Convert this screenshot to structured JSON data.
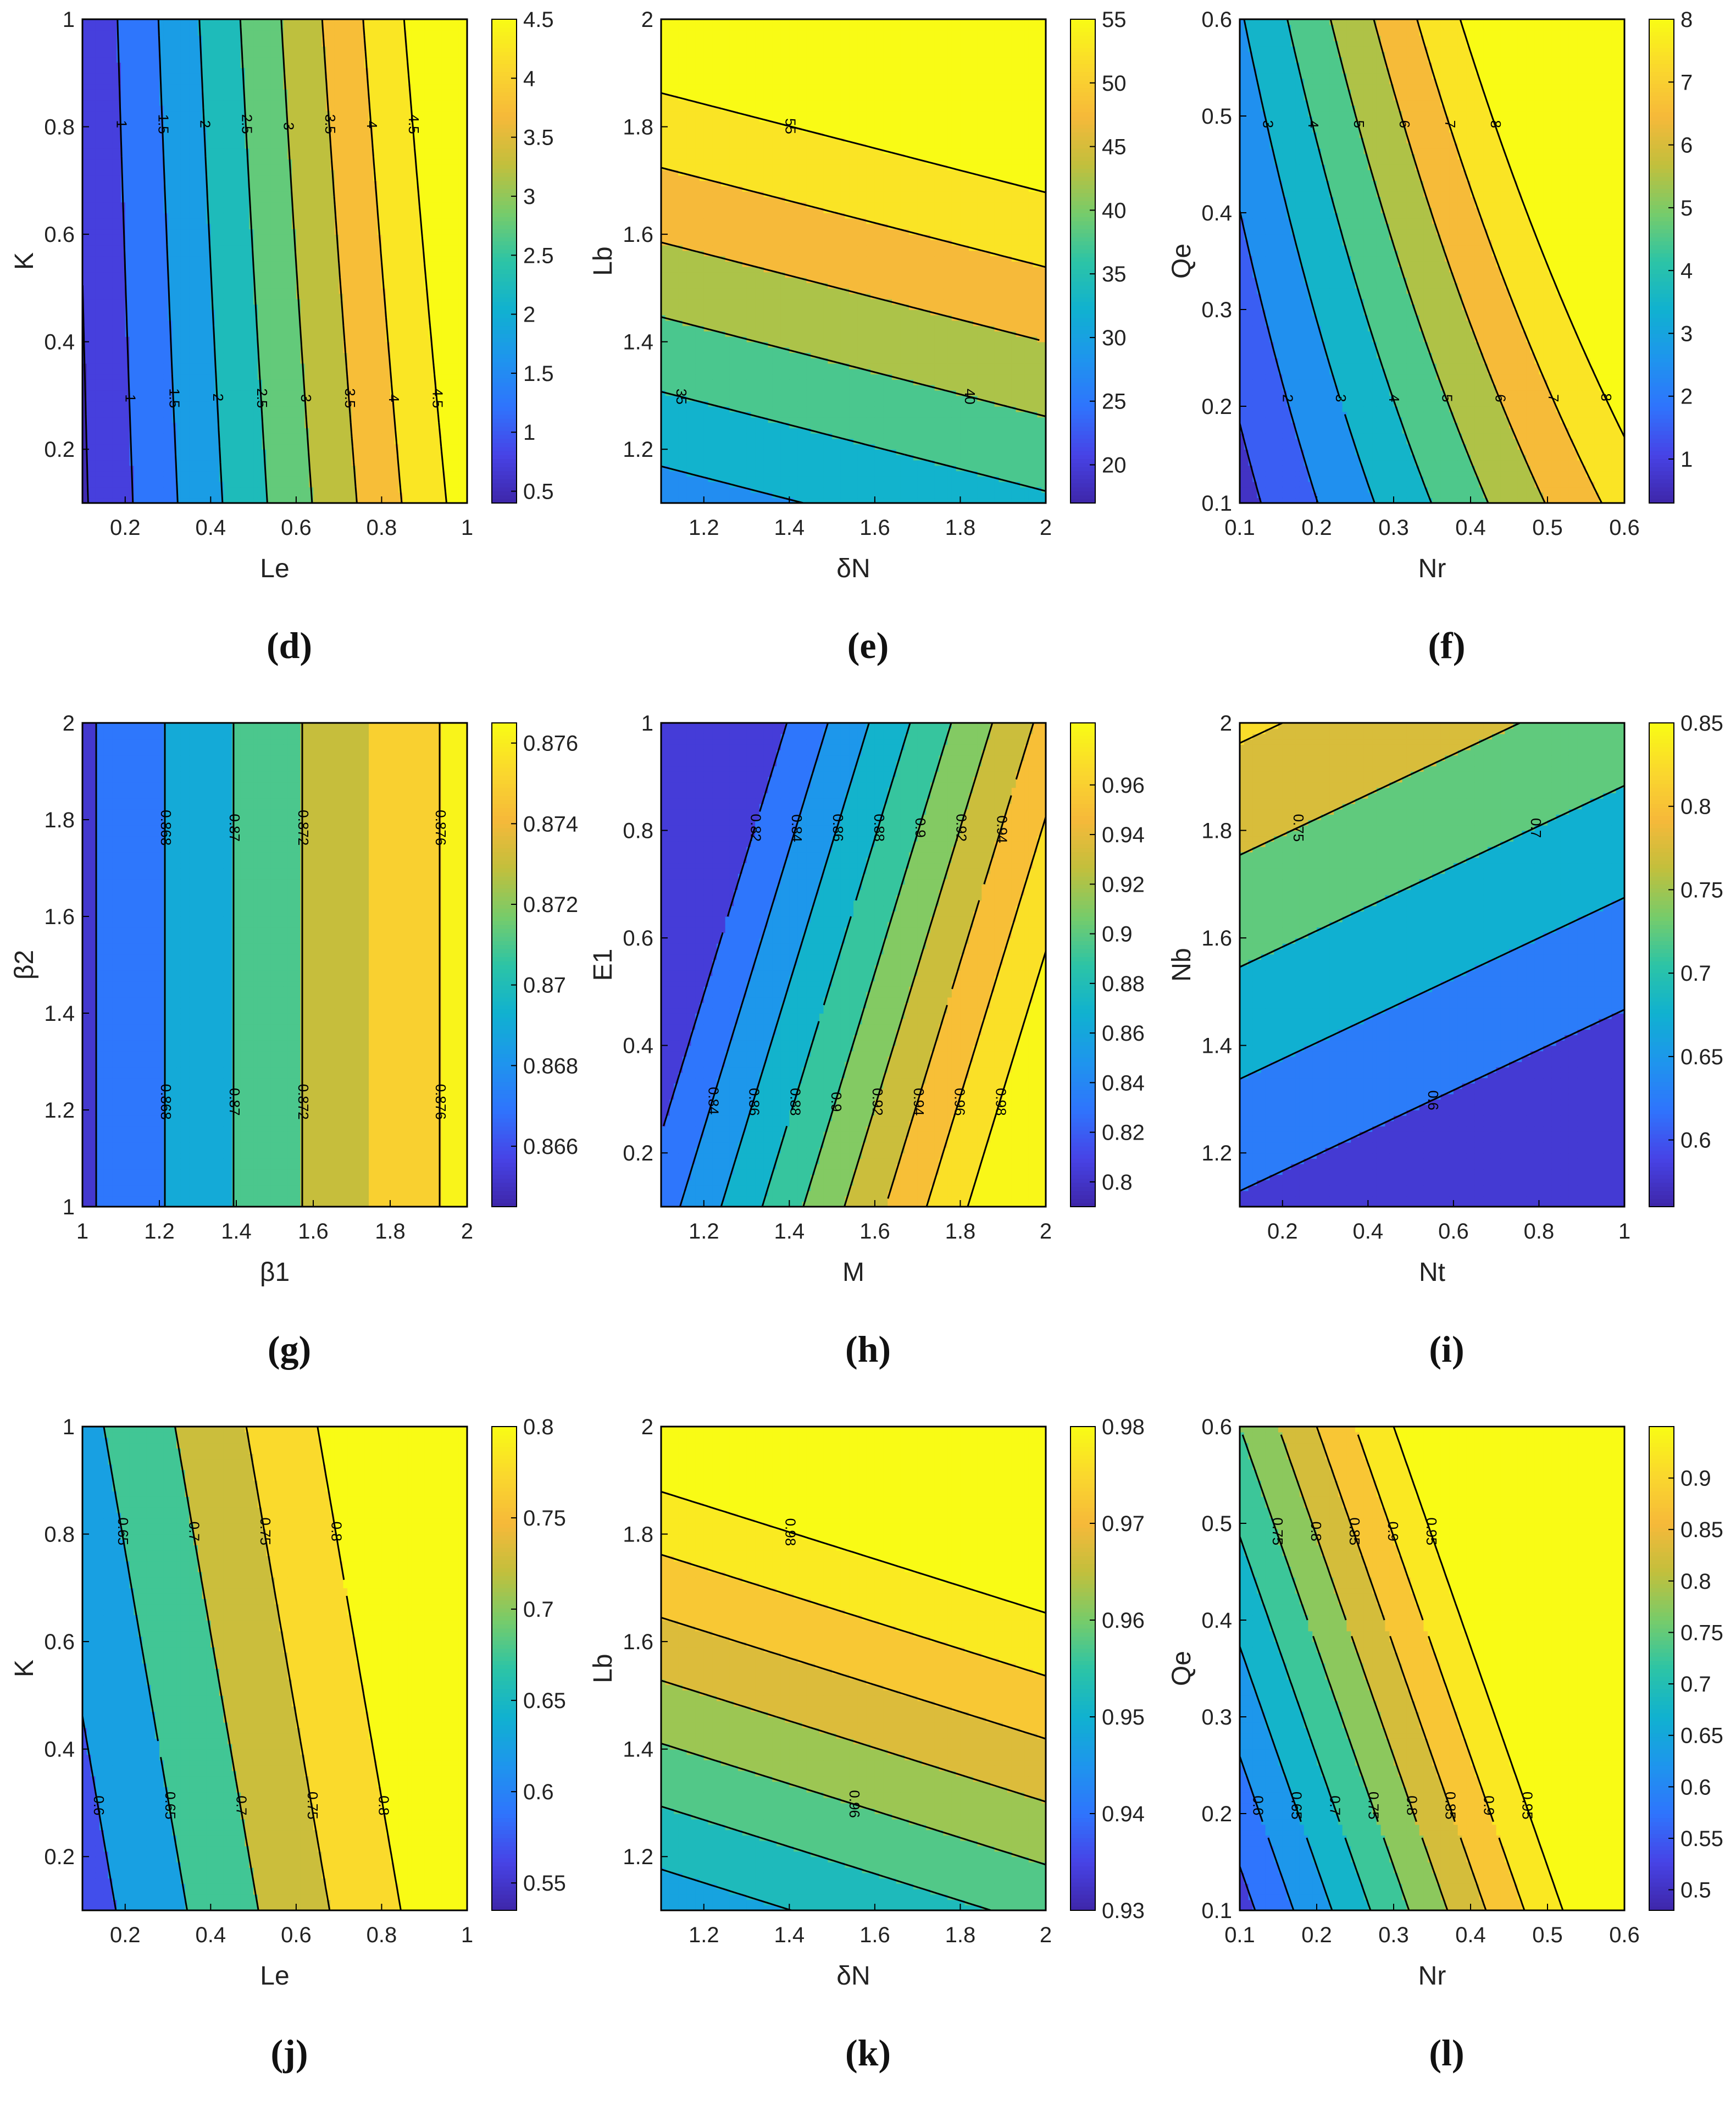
{
  "figure": {
    "background": "#ffffff",
    "outline_color": "#000000"
  },
  "chart_data": [
    {
      "type": "heatmap",
      "caption": "(d)",
      "xlabel": "Le",
      "ylabel": "K",
      "xlim": [
        0.1,
        1
      ],
      "ylim": [
        0.1,
        1
      ],
      "xticks": [
        0.2,
        0.4,
        0.6,
        0.8,
        1
      ],
      "yticks": [
        0.2,
        0.4,
        0.6,
        0.8,
        1
      ],
      "field": {
        "f": "a+b*x+c*y+d*x*y",
        "a": -0.05,
        "b": 4.72,
        "c": 0.1,
        "d": 0.5
      },
      "levels": [
        0.5,
        1,
        1.5,
        2,
        2.5,
        3,
        3.5,
        4,
        4.5
      ],
      "label_levels": [
        "0.5",
        "1",
        "1.5",
        "2",
        "2.5",
        "3",
        "3.5",
        "4",
        "4.5"
      ],
      "clim": [
        0.4,
        4.5
      ],
      "colorbar_ticks": [
        0.5,
        1,
        1.5,
        2,
        2.5,
        3,
        3.5,
        4,
        4.5
      ],
      "colorbar_labels": [
        "0.5",
        "1",
        "1.5",
        "2",
        "2.5",
        "3",
        "3.5",
        "4",
        "4.5"
      ]
    },
    {
      "type": "heatmap",
      "caption": "(e)",
      "xlabel": "δN",
      "ylabel": "Lb",
      "xlim": [
        1.1,
        2
      ],
      "ylim": [
        1.1,
        2
      ],
      "xticks": [
        1.2,
        1.4,
        1.6,
        1.8,
        2
      ],
      "yticks": [
        1.2,
        1.4,
        1.6,
        1.8,
        2
      ],
      "field": {
        "f": "a+b*x+c*y+d*x*y",
        "a": -20.2,
        "b": 7.4,
        "c": 36.0,
        "d": 0
      },
      "levels": [
        20,
        25,
        30,
        35,
        40,
        45,
        50,
        55
      ],
      "label_levels": [
        "20",
        "25",
        "30",
        "35",
        "40",
        "45",
        "50",
        "55"
      ],
      "clim": [
        17,
        55
      ],
      "colorbar_ticks": [
        20,
        25,
        30,
        35,
        40,
        45,
        50,
        55
      ],
      "colorbar_labels": [
        "20",
        "25",
        "30",
        "35",
        "40",
        "45",
        "50",
        "55"
      ]
    },
    {
      "type": "heatmap",
      "caption": "(f)",
      "xlabel": "Nr",
      "ylabel": "Qe",
      "xlim": [
        0.1,
        0.6
      ],
      "ylim": [
        0.1,
        0.6
      ],
      "xticks": [
        0.1,
        0.2,
        0.3,
        0.4,
        0.5,
        0.6
      ],
      "yticks": [
        0.1,
        0.2,
        0.3,
        0.4,
        0.5,
        0.6
      ],
      "field": {
        "f": "a+b*x+c*y+d*x*y",
        "a": -1.1,
        "b": 12.7,
        "c": 3.7,
        "d": 8.5
      },
      "levels": [
        1,
        2,
        3,
        4,
        5,
        6,
        7,
        8
      ],
      "label_levels": [
        "1",
        "2",
        "3",
        "4",
        "5",
        "6",
        "7",
        "8"
      ],
      "clim": [
        0.3,
        8
      ],
      "colorbar_ticks": [
        1,
        2,
        3,
        4,
        5,
        6,
        7,
        8
      ],
      "colorbar_labels": [
        "1",
        "2",
        "3",
        "4",
        "5",
        "6",
        "7",
        "8"
      ]
    },
    {
      "type": "heatmap",
      "caption": "(g)",
      "xlabel": "β1",
      "ylabel": "β2",
      "xlim": [
        1,
        2
      ],
      "ylim": [
        1,
        2
      ],
      "xticks": [
        1,
        1.2,
        1.4,
        1.6,
        1.8,
        2
      ],
      "yticks": [
        1,
        1.2,
        1.4,
        1.6,
        1.8,
        2
      ],
      "field": {
        "f": "a+b*x+c*y+d*x*y",
        "a": 0.8544,
        "b": 0.0112,
        "c": 0,
        "d": 0
      },
      "levels": [
        0.866,
        0.868,
        0.87,
        0.872,
        0.874,
        0.876
      ],
      "label_levels": [
        "0.866",
        "0.868",
        "0.87",
        "0.872",
        "0.874",
        "0.876"
      ],
      "clim": [
        0.8645,
        0.8765
      ],
      "colorbar_ticks": [
        0.866,
        0.868,
        0.87,
        0.872,
        0.874,
        0.876
      ],
      "colorbar_labels": [
        "0.866",
        "0.868",
        "0.87",
        "0.872",
        "0.874",
        "0.876"
      ]
    },
    {
      "type": "heatmap",
      "caption": "(h)",
      "xlabel": "M",
      "ylabel": "E1",
      "xlim": [
        1.1,
        2
      ],
      "ylim": [
        0.1,
        1
      ],
      "xticks": [
        1.2,
        1.4,
        1.6,
        1.8,
        2
      ],
      "yticks": [
        0.2,
        0.4,
        0.6,
        0.8,
        1
      ],
      "field": {
        "f": "a+b*x+c*y+d*x*y",
        "a": 0.61,
        "b": 0.208,
        "c": -0.08,
        "d": 0
      },
      "levels": [
        0.82,
        0.84,
        0.86,
        0.88,
        0.9,
        0.92,
        0.94,
        0.96,
        0.98
      ],
      "label_levels": [
        "0.82",
        "0.84",
        "0.86",
        "0.88",
        "0.9",
        "0.92",
        "0.94",
        "0.96",
        "0.98"
      ],
      "clim": [
        0.79,
        0.985
      ],
      "colorbar_ticks": [
        0.8,
        0.82,
        0.84,
        0.86,
        0.88,
        0.9,
        0.92,
        0.94,
        0.96
      ],
      "colorbar_labels": [
        "0.8",
        "0.82",
        "0.84",
        "0.86",
        "0.88",
        "0.9",
        "0.92",
        "0.94",
        "0.96"
      ]
    },
    {
      "type": "heatmap",
      "caption": "(i)",
      "xlabel": "Nt",
      "ylabel": "Nb",
      "xlim": [
        0.1,
        1
      ],
      "ylim": [
        1.1,
        2
      ],
      "xticks": [
        0.2,
        0.4,
        0.6,
        0.8,
        1
      ],
      "yticks": [
        1.2,
        1.4,
        1.6,
        1.8,
        2
      ],
      "field": {
        "f": "a+b*x+c*y+d*x*y",
        "a": 0.338,
        "b": -0.09,
        "c": 0.24,
        "d": 0
      },
      "levels": [
        0.6,
        0.65,
        0.7,
        0.75,
        0.8
      ],
      "label_levels": [
        "0.6",
        "0.65",
        "0.7",
        "0.75",
        "0.8"
      ],
      "clim": [
        0.56,
        0.85
      ],
      "colorbar_ticks": [
        0.6,
        0.65,
        0.7,
        0.75,
        0.8,
        0.85
      ],
      "colorbar_labels": [
        "0.6",
        "0.65",
        "0.7",
        "0.75",
        "0.8",
        "0.85"
      ]
    },
    {
      "type": "heatmap",
      "caption": "(j)",
      "xlabel": "Le",
      "ylabel": "K",
      "xlim": [
        0.1,
        1
      ],
      "ylim": [
        0.1,
        1
      ],
      "xticks": [
        0.2,
        0.4,
        0.6,
        0.8,
        1
      ],
      "yticks": [
        0.2,
        0.4,
        0.6,
        0.8,
        1
      ],
      "field": {
        "f": "a+b*x+c*y+d*x*y",
        "a": 0.54,
        "b": 0.3,
        "c": 0.065,
        "d": 0
      },
      "levels": [
        0.6,
        0.65,
        0.7,
        0.75,
        0.8
      ],
      "label_levels": [
        "0.6",
        "0.65",
        "0.7",
        "0.75",
        "0.8"
      ],
      "clim": [
        0.535,
        0.8
      ],
      "colorbar_ticks": [
        0.55,
        0.6,
        0.65,
        0.7,
        0.75,
        0.8
      ],
      "colorbar_labels": [
        "0.55",
        "0.6",
        "0.65",
        "0.7",
        "0.75",
        "0.8"
      ]
    },
    {
      "type": "heatmap",
      "caption": "(k)",
      "xlabel": "δN",
      "ylabel": "Lb",
      "xlim": [
        1.1,
        2
      ],
      "ylim": [
        1.1,
        2
      ],
      "xticks": [
        1.2,
        1.4,
        1.6,
        1.8,
        2
      ],
      "yticks": [
        1.2,
        1.4,
        1.6,
        1.8,
        2
      ],
      "field": {
        "f": "a+b*x+c*y+d*x*y",
        "a": 0.888,
        "b": 0.0107,
        "c": 0.0427,
        "d": 0
      },
      "levels": [
        0.935,
        0.94,
        0.945,
        0.95,
        0.955,
        0.96,
        0.965,
        0.97,
        0.975,
        0.98
      ],
      "label_levels": [
        "0.935",
        "0.94",
        "0.945",
        "0.95",
        "0.955",
        "0.96",
        "0.965",
        "0.97",
        "0.975",
        "0.98"
      ],
      "clim": [
        0.93,
        0.98
      ],
      "colorbar_ticks": [
        0.93,
        0.94,
        0.95,
        0.96,
        0.97,
        0.98
      ],
      "colorbar_labels": [
        "0.93",
        "0.94",
        "0.95",
        "0.96",
        "0.97",
        "0.98"
      ]
    },
    {
      "type": "heatmap",
      "caption": "(l)",
      "xlabel": "Nr",
      "ylabel": "Qe",
      "xlim": [
        0.1,
        0.6
      ],
      "ylim": [
        0.1,
        0.6
      ],
      "xticks": [
        0.1,
        0.2,
        0.3,
        0.4,
        0.5,
        0.6
      ],
      "yticks": [
        0.1,
        0.2,
        0.3,
        0.4,
        0.5,
        0.6
      ],
      "field": {
        "f": "a+b*x+c*y+d*x*y",
        "a": 0.386,
        "b": 1.0,
        "c": 0.44,
        "d": 0
      },
      "levels": [
        0.55,
        0.6,
        0.65,
        0.7,
        0.75,
        0.8,
        0.85,
        0.9,
        0.95
      ],
      "label_levels": [
        "0.55",
        "0.6",
        "0.65",
        "0.7",
        "0.75",
        "0.8",
        "0.85",
        "0.9",
        "0.95"
      ],
      "clim": [
        0.48,
        0.95
      ],
      "colorbar_ticks": [
        0.5,
        0.55,
        0.6,
        0.65,
        0.7,
        0.75,
        0.8,
        0.85,
        0.9
      ],
      "colorbar_labels": [
        "0.5",
        "0.55",
        "0.6",
        "0.65",
        "0.7",
        "0.75",
        "0.8",
        "0.85",
        "0.9"
      ]
    }
  ],
  "colormap": [
    "#3e26a8",
    "#4743e6",
    "#2f74fd",
    "#1e95ed",
    "#10b1d0",
    "#2cc4a6",
    "#77cc6a",
    "#c2bf3c",
    "#f6b93a",
    "#fad82d",
    "#f9fb15"
  ]
}
